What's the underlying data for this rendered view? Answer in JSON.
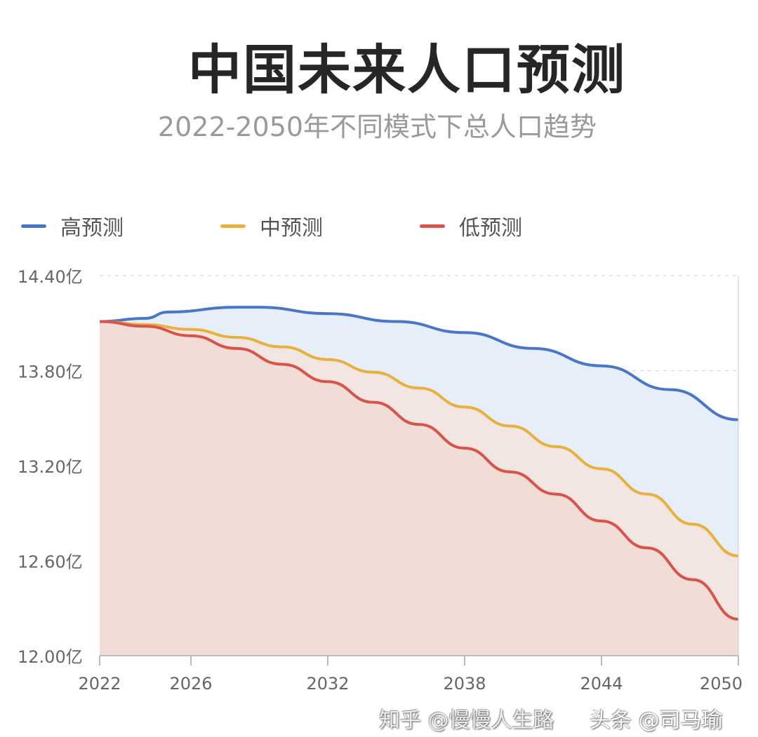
{
  "title": "中国未来人口预测",
  "subtitle": "2022-2050年不同模式下总人口趋势",
  "watermarks": [
    "知乎 @慢慢人生路",
    "头条 @司马瑜"
  ],
  "chart_data": {
    "type": "area",
    "title": "中国未来人口预测",
    "subtitle": "2022-2050年不同模式下总人口趋势",
    "xlabel": "",
    "ylabel": "",
    "ylim": [
      12.0,
      14.4
    ],
    "xlim": [
      2022,
      2050
    ],
    "y_ticks": [
      "12.00亿",
      "12.60亿",
      "13.20亿",
      "13.80亿",
      "14.40亿"
    ],
    "y_tick_values": [
      12.0,
      12.6,
      13.2,
      13.8,
      14.4
    ],
    "x_ticks": [
      "2022",
      "2026",
      "2032",
      "2038",
      "2044",
      "2050"
    ],
    "x_tick_values": [
      2022,
      2026,
      2032,
      2038,
      2044,
      2050
    ],
    "grid": "horizontal dashed",
    "legend_position": "top-left",
    "series": [
      {
        "name": "高预测",
        "color": "#4a76c8",
        "fill": "#e6eefa",
        "x": [
          2022,
          2024,
          2025,
          2028,
          2029,
          2032,
          2035,
          2038,
          2041,
          2044,
          2047,
          2050
        ],
        "values": [
          14.11,
          14.13,
          14.17,
          14.2,
          14.2,
          14.16,
          14.11,
          14.04,
          13.94,
          13.83,
          13.68,
          13.49
        ]
      },
      {
        "name": "中预测",
        "color": "#e8b03c",
        "fill": "#f3e6e2",
        "x": [
          2022,
          2024,
          2026,
          2028,
          2030,
          2032,
          2034,
          2036,
          2038,
          2040,
          2042,
          2044,
          2046,
          2048,
          2050
        ],
        "values": [
          14.11,
          14.09,
          14.06,
          14.01,
          13.95,
          13.87,
          13.79,
          13.69,
          13.57,
          13.45,
          13.32,
          13.18,
          13.02,
          12.83,
          12.63
        ]
      },
      {
        "name": "低预测",
        "color": "#d9534a",
        "fill": "#f2ddd6",
        "x": [
          2022,
          2024,
          2026,
          2028,
          2030,
          2032,
          2034,
          2036,
          2038,
          2040,
          2042,
          2044,
          2046,
          2048,
          2050
        ],
        "values": [
          14.11,
          14.08,
          14.02,
          13.94,
          13.84,
          13.73,
          13.6,
          13.46,
          13.31,
          13.16,
          13.02,
          12.85,
          12.68,
          12.48,
          12.23
        ]
      }
    ]
  }
}
